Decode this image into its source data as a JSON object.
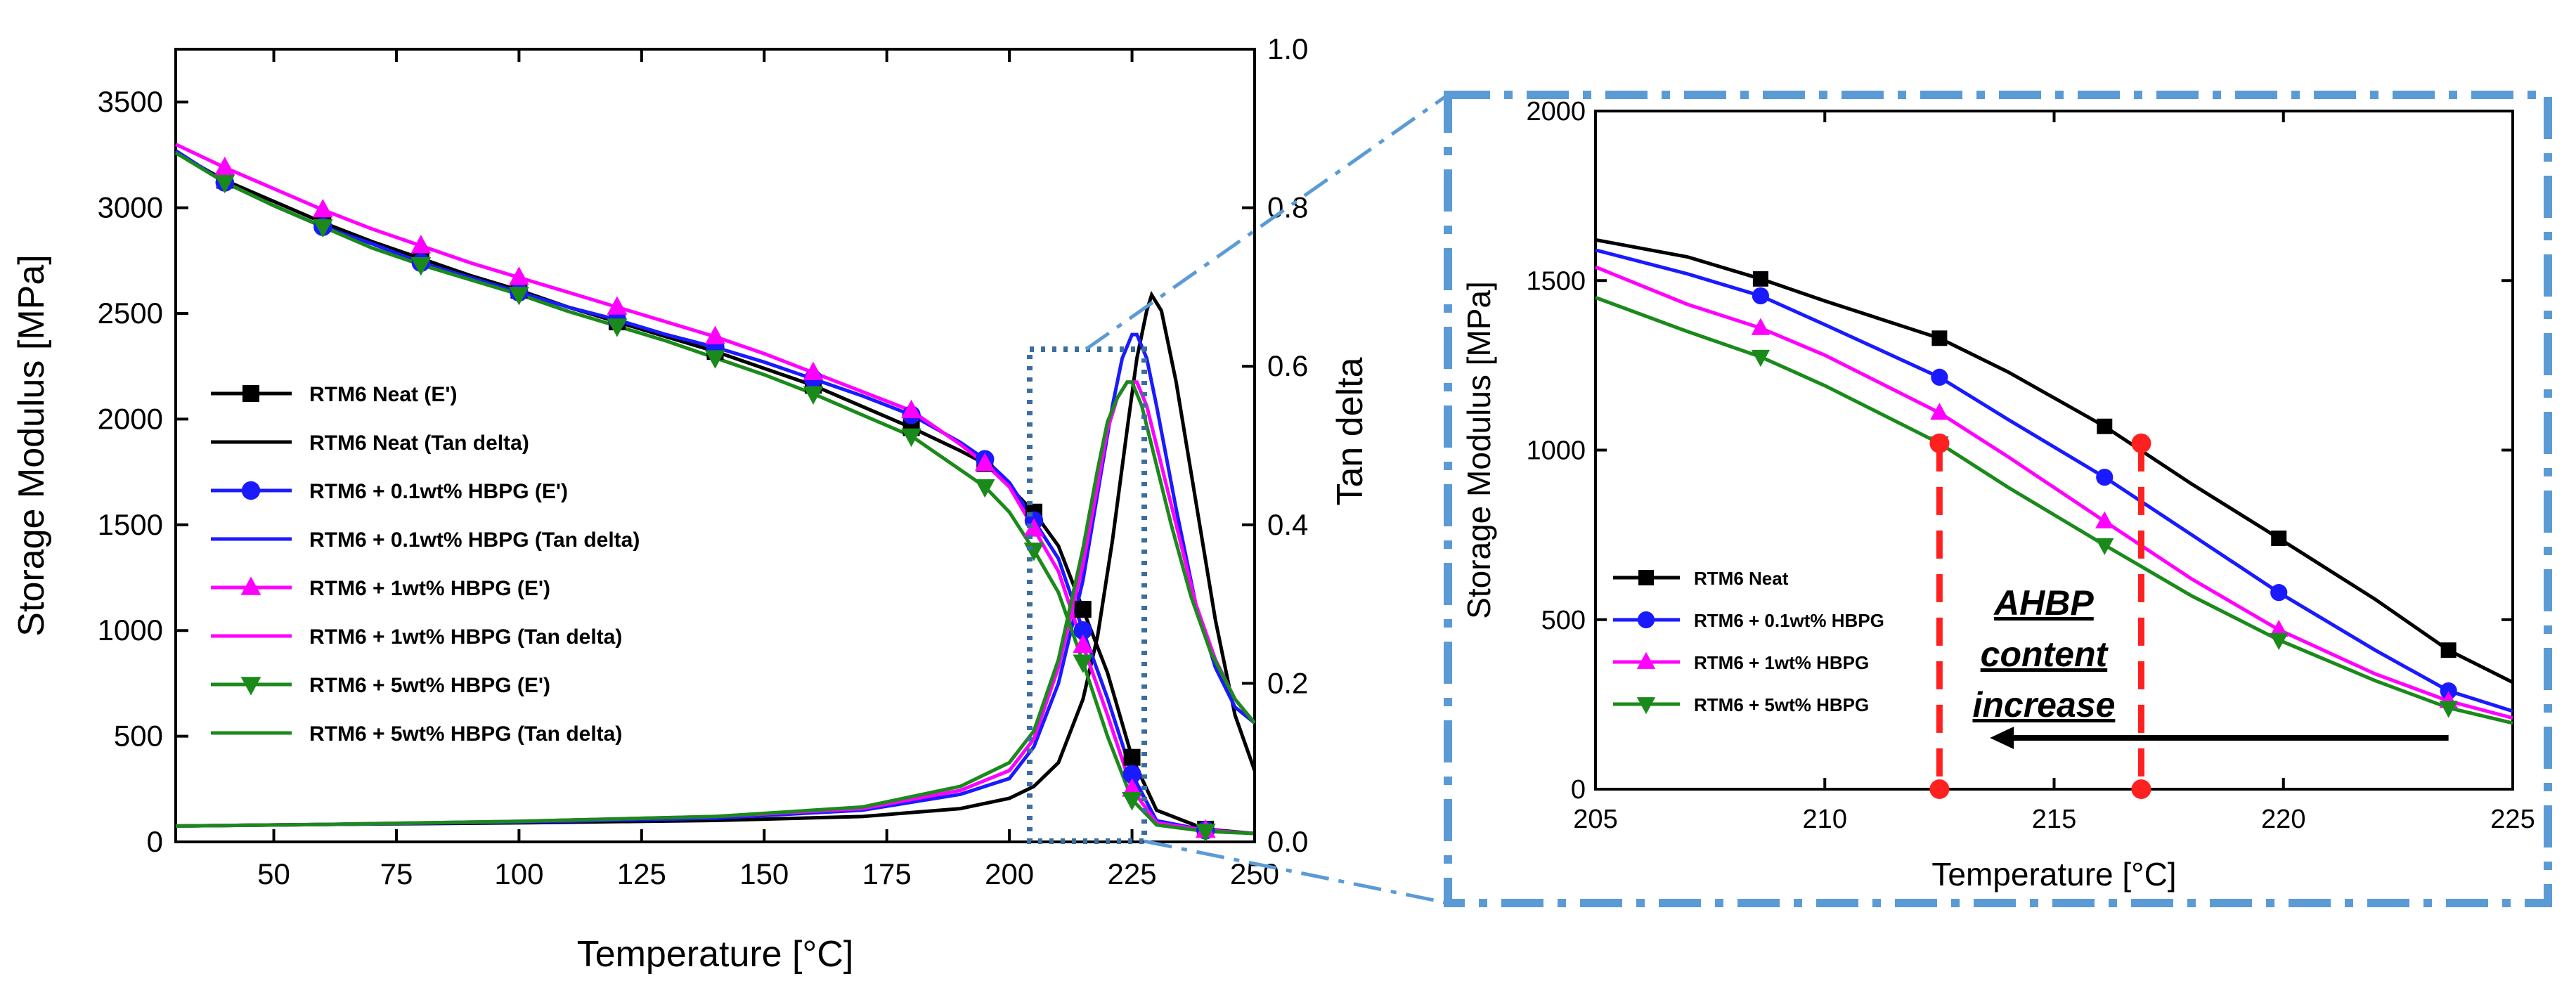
{
  "chart_data": [
    {
      "id": "main",
      "type": "line",
      "x_axis": {
        "label": "Temperature [°C]",
        "range": [
          30,
          250
        ],
        "ticks": [
          50,
          75,
          100,
          125,
          150,
          175,
          200,
          225,
          250
        ],
        "tick_labels": [
          "50",
          "75",
          "100",
          "125",
          "150",
          "175",
          "200",
          "225",
          "250"
        ]
      },
      "y_axis": {
        "label": "Storage Modulus [MPa]",
        "range": [
          0,
          3750
        ],
        "ticks": [
          0,
          500,
          1000,
          1500,
          2000,
          2500,
          3000,
          3500
        ],
        "tick_labels": [
          "0",
          "500",
          "1000",
          "1500",
          "2000",
          "2500",
          "3000",
          "3500"
        ]
      },
      "y2_axis": {
        "label": "Tan delta",
        "range": [
          0,
          1.0
        ],
        "ticks": [
          0,
          0.2,
          0.4,
          0.6,
          0.8,
          1.0
        ],
        "tick_labels": [
          "0.0",
          "0.2",
          "0.4",
          "0.6",
          "0.8",
          "1.0"
        ]
      },
      "series": [
        {
          "name": "RTM6 Neat (E')",
          "axis": "left",
          "color": "#000000",
          "marker": "square",
          "x": [
            30,
            40,
            50,
            60,
            70,
            80,
            90,
            100,
            110,
            120,
            130,
            140,
            150,
            160,
            170,
            180,
            190,
            195,
            200,
            205,
            210,
            215,
            220,
            225,
            230,
            240,
            250
          ],
          "y": [
            3260,
            3130,
            3030,
            2930,
            2840,
            2760,
            2680,
            2610,
            2530,
            2460,
            2390,
            2320,
            2240,
            2160,
            2060,
            1960,
            1850,
            1790,
            1680,
            1560,
            1400,
            1100,
            800,
            400,
            150,
            60,
            40
          ]
        },
        {
          "name": "RTM6 Neat (Tan delta)",
          "axis": "right",
          "color": "#000000",
          "marker": "none",
          "x": [
            30,
            60,
            100,
            140,
            170,
            190,
            200,
            205,
            210,
            215,
            218,
            221,
            224,
            226,
            228,
            229,
            231,
            234,
            238,
            242,
            246,
            250
          ],
          "y": [
            0.02,
            0.022,
            0.024,
            0.027,
            0.032,
            0.042,
            0.055,
            0.07,
            0.1,
            0.18,
            0.26,
            0.38,
            0.52,
            0.61,
            0.67,
            0.69,
            0.67,
            0.58,
            0.43,
            0.28,
            0.16,
            0.09
          ]
        },
        {
          "name": "RTM6 + 0.1wt% HBPG (E')",
          "axis": "left",
          "color": "#1a1aff",
          "marker": "circle",
          "x": [
            30,
            40,
            50,
            60,
            70,
            80,
            90,
            100,
            110,
            120,
            130,
            140,
            150,
            160,
            170,
            180,
            190,
            195,
            200,
            205,
            210,
            215,
            220,
            225,
            230,
            240,
            250
          ],
          "y": [
            3270,
            3120,
            3010,
            2910,
            2830,
            2740,
            2670,
            2600,
            2530,
            2470,
            2400,
            2340,
            2270,
            2190,
            2110,
            2020,
            1890,
            1810,
            1700,
            1520,
            1340,
            1000,
            680,
            320,
            100,
            55,
            40
          ]
        },
        {
          "name": "RTM6 + 0.1wt% HBPG (Tan delta)",
          "axis": "right",
          "color": "#1a1aff",
          "marker": "none",
          "x": [
            30,
            60,
            100,
            140,
            170,
            190,
            200,
            205,
            210,
            215,
            218,
            221,
            223,
            225,
            226,
            228,
            230,
            234,
            238,
            242,
            246,
            250
          ],
          "y": [
            0.02,
            0.022,
            0.025,
            0.03,
            0.04,
            0.06,
            0.08,
            0.12,
            0.2,
            0.33,
            0.44,
            0.55,
            0.61,
            0.64,
            0.64,
            0.61,
            0.55,
            0.42,
            0.3,
            0.22,
            0.17,
            0.15
          ]
        },
        {
          "name": "RTM6 + 1wt% HBPG (E')",
          "axis": "left",
          "color": "#ff00ff",
          "marker": "triangle-up",
          "x": [
            30,
            40,
            50,
            60,
            70,
            80,
            90,
            100,
            110,
            120,
            130,
            140,
            150,
            160,
            170,
            180,
            190,
            195,
            200,
            205,
            210,
            215,
            220,
            225,
            230,
            240,
            250
          ],
          "y": [
            3300,
            3190,
            3090,
            2990,
            2900,
            2820,
            2740,
            2670,
            2600,
            2530,
            2460,
            2390,
            2310,
            2220,
            2130,
            2040,
            1880,
            1790,
            1680,
            1480,
            1280,
            930,
            600,
            250,
            90,
            55,
            40
          ]
        },
        {
          "name": "RTM6 + 1wt% HBPG (Tan delta)",
          "axis": "right",
          "color": "#ff00ff",
          "marker": "none",
          "x": [
            30,
            60,
            100,
            140,
            170,
            190,
            200,
            205,
            210,
            215,
            218,
            220,
            222,
            224,
            226,
            228,
            230,
            234,
            238,
            242,
            246,
            250
          ],
          "y": [
            0.02,
            0.022,
            0.026,
            0.032,
            0.042,
            0.065,
            0.09,
            0.13,
            0.22,
            0.35,
            0.45,
            0.52,
            0.56,
            0.58,
            0.58,
            0.55,
            0.5,
            0.4,
            0.3,
            0.23,
            0.18,
            0.15
          ]
        },
        {
          "name": "RTM6 + 5wt% HBPG (E')",
          "axis": "left",
          "color": "#1a8a1a",
          "marker": "triangle-down",
          "x": [
            30,
            40,
            50,
            60,
            70,
            80,
            90,
            100,
            110,
            120,
            130,
            140,
            150,
            160,
            170,
            180,
            190,
            195,
            200,
            205,
            210,
            215,
            220,
            225,
            230,
            240,
            250
          ],
          "y": [
            3260,
            3120,
            3010,
            2910,
            2810,
            2730,
            2660,
            2590,
            2510,
            2440,
            2370,
            2290,
            2210,
            2120,
            2020,
            1920,
            1760,
            1680,
            1560,
            1380,
            1180,
            850,
            500,
            200,
            80,
            50,
            40
          ]
        },
        {
          "name": "RTM6 + 5wt% HBPG (Tan delta)",
          "axis": "right",
          "color": "#1a8a1a",
          "marker": "none",
          "x": [
            30,
            60,
            100,
            140,
            170,
            190,
            200,
            205,
            210,
            215,
            218,
            220,
            222,
            224,
            225,
            227,
            229,
            233,
            237,
            241,
            246,
            250
          ],
          "y": [
            0.02,
            0.022,
            0.026,
            0.032,
            0.044,
            0.07,
            0.1,
            0.14,
            0.23,
            0.37,
            0.47,
            0.53,
            0.56,
            0.58,
            0.58,
            0.55,
            0.5,
            0.4,
            0.31,
            0.24,
            0.18,
            0.15
          ]
        }
      ]
    },
    {
      "id": "zoom",
      "type": "line",
      "x_axis": {
        "label": "Temperature [°C]",
        "range": [
          205,
          225
        ],
        "ticks": [
          205,
          210,
          215,
          220,
          225
        ],
        "tick_labels": [
          "205",
          "210",
          "215",
          "220",
          "225"
        ]
      },
      "y_axis": {
        "label": "Storage Modulus [MPa]",
        "range": [
          0,
          2000
        ],
        "ticks": [
          0,
          500,
          1000,
          1500,
          2000
        ],
        "tick_labels": [
          "0",
          "500",
          "1000",
          "1500",
          "2000"
        ]
      },
      "series": [
        {
          "name": "RTM6 Neat",
          "color": "#000000",
          "marker": "square",
          "x": [
            205,
            207,
            208.6,
            210,
            212.5,
            214,
            216.1,
            218,
            219.9,
            222,
            223.6,
            225
          ],
          "y": [
            1620,
            1570,
            1505,
            1440,
            1330,
            1230,
            1070,
            900,
            740,
            560,
            410,
            315
          ]
        },
        {
          "name": "RTM6 + 0.1wt% HBPG",
          "color": "#1a1aff",
          "marker": "circle",
          "x": [
            205,
            207,
            208.6,
            210,
            212.5,
            214,
            216.1,
            218,
            219.9,
            222,
            223.6,
            225
          ],
          "y": [
            1590,
            1520,
            1455,
            1370,
            1215,
            1090,
            920,
            750,
            580,
            410,
            290,
            230
          ]
        },
        {
          "name": "RTM6 + 1wt% HBPG",
          "color": "#ff00ff",
          "marker": "triangle-up",
          "x": [
            205,
            207,
            208.6,
            210,
            212.5,
            214,
            216.1,
            218,
            219.9,
            222,
            223.6,
            225
          ],
          "y": [
            1540,
            1430,
            1360,
            1280,
            1110,
            980,
            790,
            620,
            470,
            340,
            260,
            210
          ]
        },
        {
          "name": "RTM6 + 5wt% HBPG",
          "color": "#1a8a1a",
          "marker": "triangle-down",
          "x": [
            205,
            207,
            208.6,
            210,
            212.5,
            214,
            216.1,
            218,
            219.9,
            222,
            223.6,
            225
          ],
          "y": [
            1450,
            1350,
            1275,
            1190,
            1020,
            890,
            720,
            570,
            440,
            320,
            240,
            195
          ]
        }
      ],
      "annotations": {
        "vlines": [
          {
            "x": 212.5,
            "y_top": 1020
          },
          {
            "x": 216.9,
            "y_top": 1020
          }
        ],
        "vline_color": "#ff2020",
        "text_lines": [
          "AHBP",
          "content",
          "increase"
        ],
        "arrow": {
          "from_x": 223.6,
          "to_x": 213.6,
          "y": 120
        }
      }
    }
  ],
  "colors": {
    "zoom_frame": "#5b9bd5",
    "zoom_box": "#3b6e9e"
  }
}
